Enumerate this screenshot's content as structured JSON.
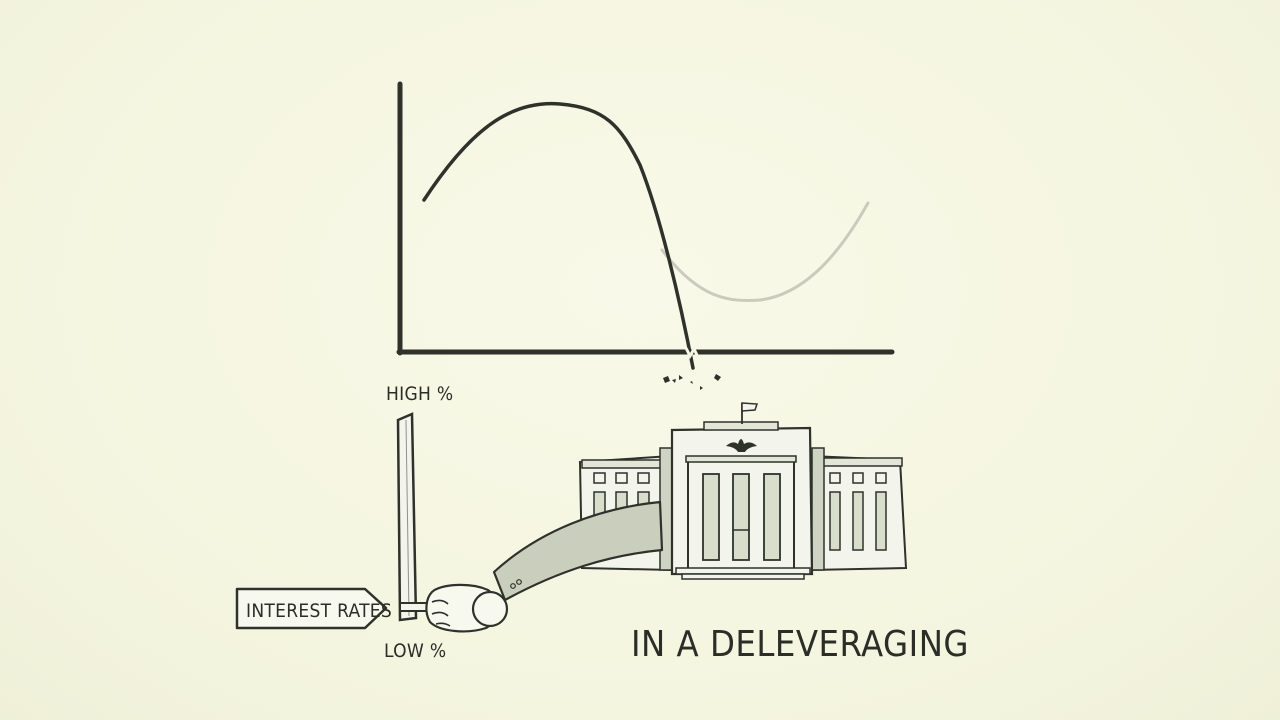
{
  "labels": {
    "high": "HIGH %",
    "low": "LOW %",
    "interest_rates": "INTEREST RATES",
    "caption": "IN A DELEVERAGING"
  },
  "colors": {
    "ink": "#2e322b",
    "paper": "#f6f7e4",
    "faded_curve": "#c9cbbd",
    "building_fill": "#f3f4ec",
    "building_shade": "#cfd3c4",
    "sleeve": "#c9cebd"
  },
  "icons": [
    "eagle-icon",
    "flag-icon",
    "central-bank-building-icon",
    "lever-icon",
    "hand-icon"
  ]
}
